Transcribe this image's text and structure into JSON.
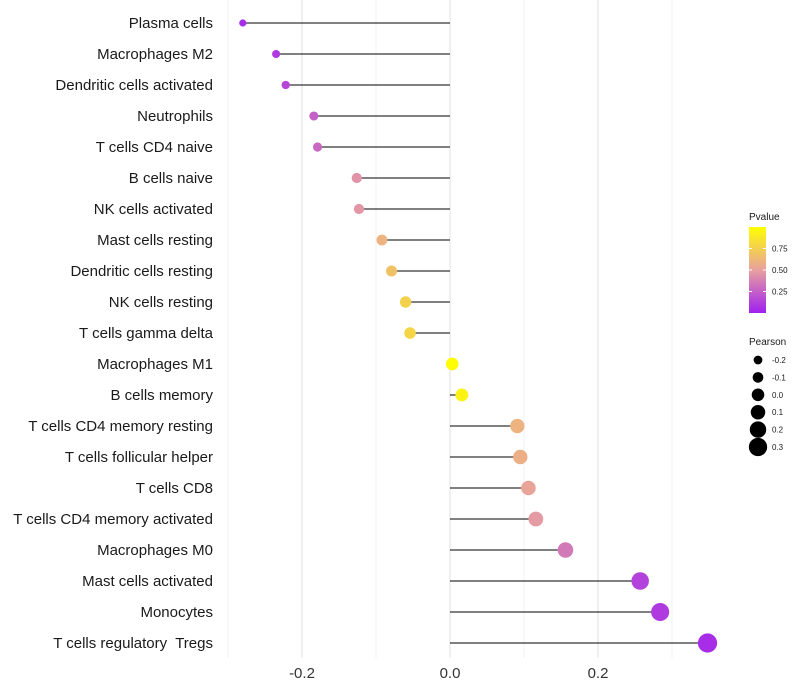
{
  "chart_data": {
    "type": "lollipop",
    "xlim": [
      -0.3,
      0.35
    ],
    "xticks": [
      -0.2,
      0.0,
      0.2
    ],
    "xtick_labels": [
      "-0.2",
      "0.0",
      "0.2"
    ],
    "color_legend": {
      "title": "Pvalue",
      "ticks": [
        0.25,
        0.5,
        0.75
      ],
      "tick_labels": [
        "0.25",
        "0.50",
        "0.75"
      ],
      "low_color": "#a020f0",
      "mid_color": "#e8a0a0",
      "high_color": "#ffff00"
    },
    "size_legend": {
      "title": "Pearson",
      "values": [
        -0.2,
        -0.1,
        0.0,
        0.1,
        0.2,
        0.3
      ],
      "labels": [
        "-0.2",
        "-0.1",
        "0.0",
        "0.1",
        "0.2",
        "0.3"
      ]
    },
    "points": [
      {
        "name": "Plasma cells",
        "pearson": -0.28,
        "pvalue": 0.05
      },
      {
        "name": "Macrophages M2",
        "pearson": -0.235,
        "pvalue": 0.1
      },
      {
        "name": "Dendritic cells activated",
        "pearson": -0.222,
        "pvalue": 0.15
      },
      {
        "name": "Neutrophils",
        "pearson": -0.184,
        "pvalue": 0.25
      },
      {
        "name": "T cells CD4 naive",
        "pearson": -0.179,
        "pvalue": 0.28
      },
      {
        "name": "B cells naive",
        "pearson": -0.126,
        "pvalue": 0.45
      },
      {
        "name": "NK cells activated",
        "pearson": -0.123,
        "pvalue": 0.46
      },
      {
        "name": "Mast cells resting",
        "pearson": -0.092,
        "pvalue": 0.6
      },
      {
        "name": "Dendritic cells resting",
        "pearson": -0.079,
        "pvalue": 0.68
      },
      {
        "name": "NK cells resting",
        "pearson": -0.06,
        "pvalue": 0.76
      },
      {
        "name": "T cells gamma delta",
        "pearson": -0.054,
        "pvalue": 0.78
      },
      {
        "name": "Macrophages M1",
        "pearson": 0.003,
        "pvalue": 0.99
      },
      {
        "name": "B cells memory",
        "pearson": 0.016,
        "pvalue": 0.93
      },
      {
        "name": "T cells CD4 memory resting",
        "pearson": 0.091,
        "pvalue": 0.6
      },
      {
        "name": "T cells follicular helper",
        "pearson": 0.095,
        "pvalue": 0.58
      },
      {
        "name": "T cells CD8",
        "pearson": 0.106,
        "pvalue": 0.52
      },
      {
        "name": "T cells CD4 memory activated",
        "pearson": 0.116,
        "pvalue": 0.48
      },
      {
        "name": "Macrophages M0",
        "pearson": 0.156,
        "pvalue": 0.35
      },
      {
        "name": "Mast cells activated",
        "pearson": 0.257,
        "pvalue": 0.13
      },
      {
        "name": "Monocytes",
        "pearson": 0.284,
        "pvalue": 0.1
      },
      {
        "name": "T cells regulatory  Tregs",
        "pearson": 0.348,
        "pvalue": 0.05
      }
    ]
  }
}
